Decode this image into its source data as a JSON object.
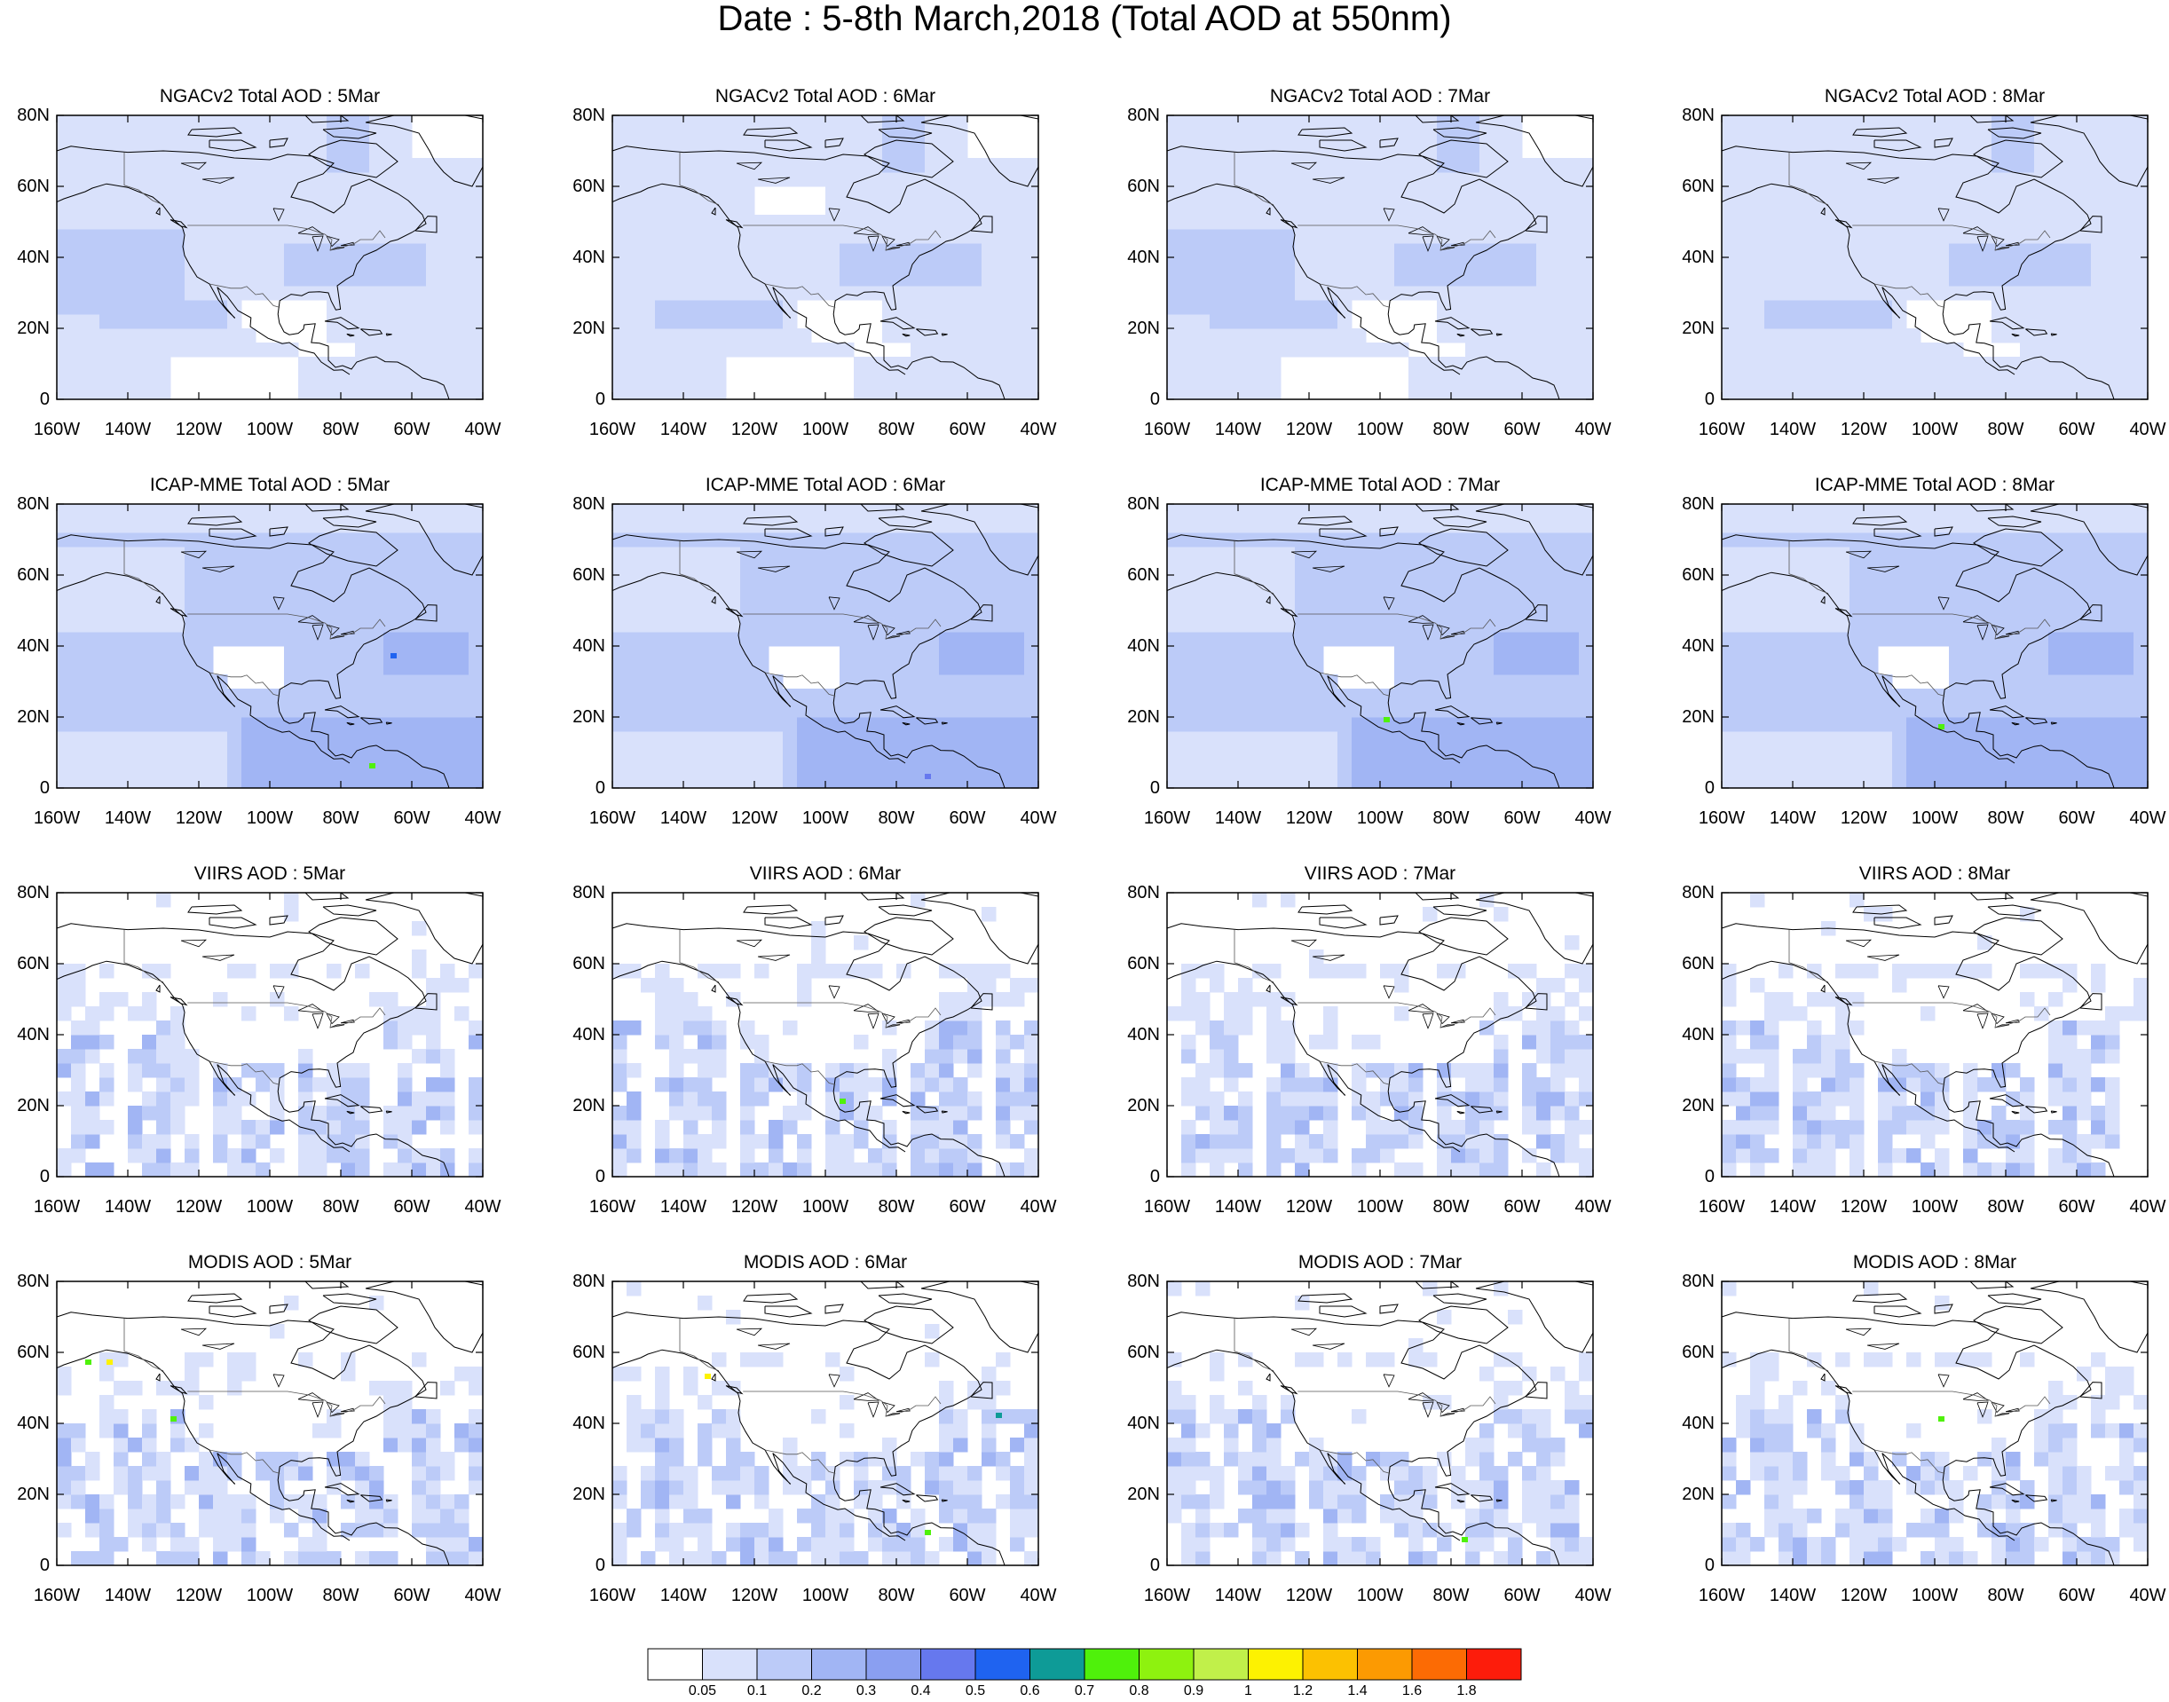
{
  "title": "Date : 5-8th March,2018 (Total AOD at 550nm)",
  "rows": [
    {
      "product": "NGACv2 Total AOD",
      "panel_titles": [
        "NGACv2 Total AOD : 5Mar",
        "NGACv2 Total AOD : 6Mar",
        "NGACv2 Total AOD : 7Mar",
        "NGACv2 Total AOD : 8Mar"
      ]
    },
    {
      "product": "ICAP-MME Total AOD",
      "panel_titles": [
        "ICAP-MME Total AOD : 5Mar",
        "ICAP-MME Total AOD : 6Mar",
        "ICAP-MME Total AOD : 7Mar",
        "ICAP-MME Total AOD : 8Mar"
      ]
    },
    {
      "product": "VIIRS AOD",
      "panel_titles": [
        "VIIRS AOD : 5Mar",
        "VIIRS AOD : 6Mar",
        "VIIRS AOD : 7Mar",
        "VIIRS AOD : 8Mar"
      ]
    },
    {
      "product": "MODIS AOD",
      "panel_titles": [
        "MODIS AOD : 5Mar",
        "MODIS AOD : 6Mar",
        "MODIS AOD : 7Mar",
        "MODIS AOD : 8Mar"
      ]
    }
  ],
  "map_extent": {
    "lon": [
      -160,
      -40
    ],
    "lat": [
      0,
      80
    ]
  },
  "lat_ticks": [
    "80N",
    "60N",
    "40N",
    "20N",
    "0"
  ],
  "lon_ticks": [
    "160W",
    "140W",
    "120W",
    "100W",
    "80W",
    "60W",
    "40W"
  ],
  "colorbar": {
    "labels": [
      "0.05",
      "0.1",
      "0.2",
      "0.3",
      "0.4",
      "0.5",
      "0.6",
      "0.7",
      "0.8",
      "0.9",
      "1",
      "1.2",
      "1.4",
      "1.6",
      "1.8"
    ],
    "colors": [
      "#ffffff",
      "#d9e1fb",
      "#bccbf8",
      "#a1b5f4",
      "#8a9ff1",
      "#6678ee",
      "#1f63f0",
      "#0e9b97",
      "#4ff10b",
      "#8ef20f",
      "#c1f04a",
      "#fdf201",
      "#fcc101",
      "#fc9a02",
      "#fc6b04",
      "#fd1c0b"
    ]
  }
}
